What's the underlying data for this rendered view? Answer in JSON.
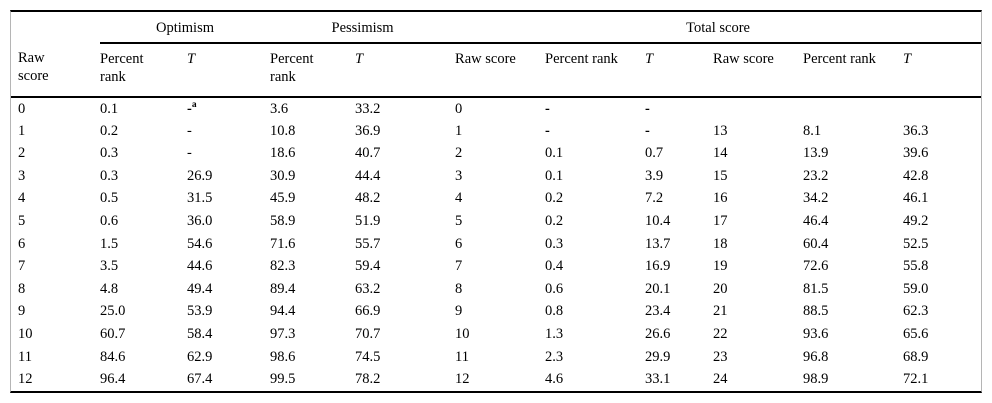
{
  "table": {
    "spanners": [
      {
        "label": "",
        "colspan": 1
      },
      {
        "label": "Optimism",
        "colspan": 2
      },
      {
        "label": "Pessimism",
        "colspan": 2
      },
      {
        "label": "Total score",
        "colspan": 6
      }
    ],
    "columns": [
      "Raw score",
      "Percent rank",
      "T",
      "Percent rank",
      "T",
      "Raw score",
      "Percent rank",
      "T",
      "Raw score",
      "Percent rank",
      "T"
    ],
    "footnote_marker": "a",
    "rows": [
      [
        "0",
        "0.1",
        {
          "t": "-",
          "sup": "a",
          "bold": true
        },
        "3.6",
        "33.2",
        "0",
        {
          "t": "-",
          "bold": true
        },
        {
          "t": "-",
          "bold": true
        },
        "",
        "",
        ""
      ],
      [
        "1",
        "0.2",
        "-",
        "10.8",
        "36.9",
        "1",
        {
          "t": "-",
          "bold": true
        },
        {
          "t": "-",
          "bold": true
        },
        "13",
        "8.1",
        "36.3"
      ],
      [
        "2",
        "0.3",
        "-",
        "18.6",
        "40.7",
        "2",
        "0.1",
        "0.7",
        "14",
        "13.9",
        "39.6"
      ],
      [
        "3",
        "0.3",
        "26.9",
        "30.9",
        "44.4",
        "3",
        "0.1",
        "3.9",
        "15",
        "23.2",
        "42.8"
      ],
      [
        "4",
        "0.5",
        "31.5",
        "45.9",
        "48.2",
        "4",
        "0.2",
        "7.2",
        "16",
        "34.2",
        "46.1"
      ],
      [
        "5",
        "0.6",
        "36.0",
        "58.9",
        "51.9",
        "5",
        "0.2",
        "10.4",
        "17",
        "46.4",
        "49.2"
      ],
      [
        "6",
        "1.5",
        "54.6",
        "71.6",
        "55.7",
        "6",
        "0.3",
        "13.7",
        "18",
        "60.4",
        "52.5"
      ],
      [
        "7",
        "3.5",
        "44.6",
        "82.3",
        "59.4",
        "7",
        "0.4",
        "16.9",
        "19",
        "72.6",
        "55.8"
      ],
      [
        "8",
        "4.8",
        "49.4",
        "89.4",
        "63.2",
        "8",
        "0.6",
        "20.1",
        "20",
        "81.5",
        "59.0"
      ],
      [
        "9",
        "25.0",
        "53.9",
        "94.4",
        "66.9",
        "9",
        "0.8",
        "23.4",
        "21",
        "88.5",
        "62.3"
      ],
      [
        "10",
        "60.7",
        "58.4",
        "97.3",
        "70.7",
        "10",
        "1.3",
        "26.6",
        "22",
        "93.6",
        "65.6"
      ],
      [
        "11",
        "84.6",
        "62.9",
        "98.6",
        "74.5",
        "11",
        "2.3",
        "29.9",
        "23",
        "96.8",
        "68.9"
      ],
      [
        "12",
        "96.4",
        "67.4",
        "99.5",
        "78.2",
        "12",
        "4.6",
        "33.1",
        "24",
        "98.9",
        "72.1"
      ]
    ]
  }
}
